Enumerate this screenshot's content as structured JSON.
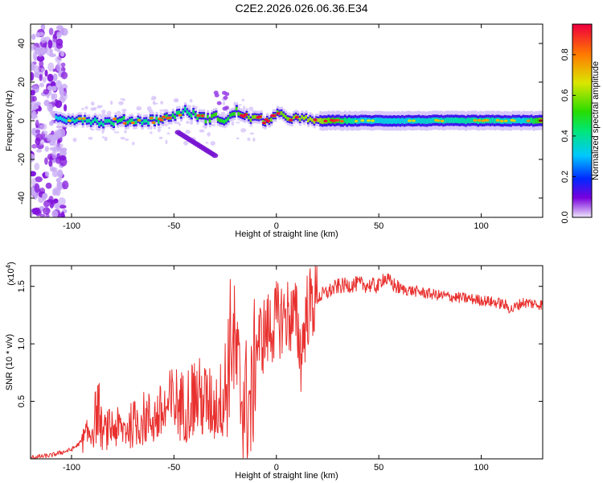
{
  "title": "C2E2.2026.026.06.36.E34",
  "chart_data": [
    {
      "type": "heatmap",
      "xlabel": "Height of straight line (km)",
      "ylabel": "Frequency (Hz)",
      "xlim": [
        -120,
        130
      ],
      "ylim": [
        -50,
        50
      ],
      "xticks": [
        -100,
        -50,
        0,
        50,
        100
      ],
      "yticks": [
        -40,
        -20,
        0,
        20,
        40
      ],
      "colorbar": {
        "label": "Normalized spectral amplitude",
        "range": [
          0,
          0.95
        ],
        "ticks": [
          0.0,
          0.2,
          0.4,
          0.6,
          0.8
        ]
      },
      "ridge": {
        "x": [
          -105,
          -95,
          -85,
          -75,
          -65,
          -55,
          -50,
          -45,
          -40,
          -35,
          -30,
          -25,
          -20,
          -15,
          -10,
          -5,
          0,
          10,
          20,
          40,
          60,
          80,
          100,
          120,
          130
        ],
        "frequency": [
          1,
          1,
          -1,
          0,
          0,
          1,
          3,
          5,
          3,
          1,
          2,
          0,
          5,
          2,
          1,
          0,
          3,
          1,
          0,
          0,
          0,
          0,
          0,
          0,
          0
        ],
        "amplitude": [
          0.5,
          0.6,
          0.6,
          0.7,
          0.6,
          0.7,
          0.7,
          0.6,
          0.7,
          0.75,
          0.8,
          0.7,
          0.8,
          0.85,
          0.9,
          0.9,
          0.85,
          0.9,
          0.95,
          0.5,
          0.5,
          0.55,
          0.6,
          0.5,
          0.9
        ]
      }
    },
    {
      "type": "line",
      "xlabel": "Height of straight line (km)",
      "ylabel": "SNR (10 * v/v)",
      "yscale_label": "(x10",
      "yscale_exp": "4",
      "yscale_close": ")",
      "xlim": [
        -120,
        130
      ],
      "ylim": [
        0,
        1.68
      ],
      "xticks": [
        -100,
        -50,
        0,
        50,
        100
      ],
      "yticks": [
        0.5,
        1.0,
        1.5
      ],
      "ytick_labels": [
        "0.5",
        "1.0",
        "1.5"
      ],
      "series": [
        {
          "color": "#e8302e",
          "x": [
            -120,
            -110,
            -100,
            -95,
            -90,
            -87,
            -85,
            -80,
            -75,
            -70,
            -65,
            -60,
            -55,
            -50,
            -45,
            -40,
            -35,
            -30,
            -25,
            -22,
            -20,
            -18,
            -15,
            -12,
            -10,
            -5,
            0,
            5,
            10,
            12,
            15,
            20,
            25,
            30,
            40,
            50,
            52,
            60,
            70,
            80,
            90,
            100,
            110,
            115,
            120,
            130
          ],
          "y": [
            0.01,
            0.03,
            0.08,
            0.15,
            0.25,
            0.45,
            0.22,
            0.28,
            0.25,
            0.3,
            0.35,
            0.35,
            0.4,
            0.5,
            0.45,
            0.55,
            0.5,
            0.45,
            0.55,
            1.1,
            0.9,
            0.6,
            0.5,
            0.45,
            1.0,
            1.1,
            1.2,
            1.25,
            1.2,
            0.9,
            1.3,
            1.4,
            1.45,
            1.5,
            1.52,
            1.5,
            1.58,
            1.48,
            1.45,
            1.42,
            1.4,
            1.38,
            1.35,
            1.3,
            1.36,
            1.34
          ]
        }
      ]
    }
  ]
}
